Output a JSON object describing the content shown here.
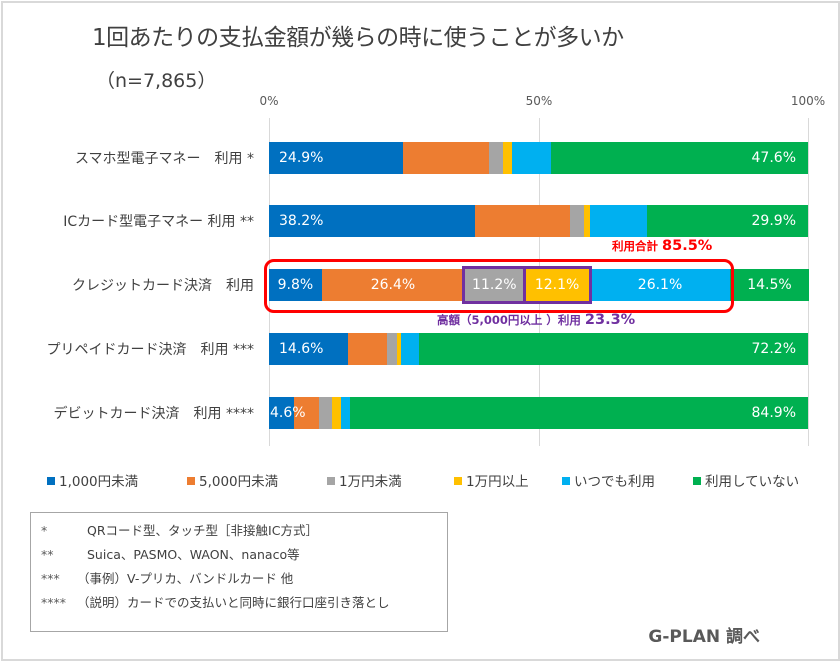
{
  "chart_data": {
    "type": "bar",
    "orientation": "horizontal",
    "stacked": "percent",
    "title": "1回あたりの支払金額が幾らの時に使うことが多いか",
    "subtitle": "（n=7,865）",
    "xlim": [
      0,
      100
    ],
    "x_ticks": [
      "0%",
      "50%",
      "100%"
    ],
    "grid": true,
    "legend_position": "bottom",
    "categories": [
      "スマホ型電子マネー　利用 *",
      "ICカード型電子マネー 利用 **",
      "クレジットカード決済　利用",
      "プリペイドカード決済　利用 ***",
      "デビットカード決済　利用 ****"
    ],
    "series": [
      {
        "name": "1,000円未満",
        "color": "#0070c0",
        "values": [
          24.9,
          38.2,
          9.8,
          14.6,
          4.6
        ],
        "labels": [
          "24.9%",
          "38.2%",
          "9.8%",
          "14.6%",
          "4.6%"
        ]
      },
      {
        "name": "5,000円未満",
        "color": "#ed7d31",
        "values": [
          16.0,
          17.6,
          26.4,
          7.2,
          4.7
        ],
        "labels": [
          "",
          "",
          "26.4%",
          "",
          ""
        ]
      },
      {
        "name": "1万円未満",
        "color": "#a5a5a5",
        "values": [
          2.6,
          2.6,
          11.2,
          1.9,
          2.4
        ],
        "labels": [
          "",
          "",
          "11.2%",
          "",
          ""
        ]
      },
      {
        "name": "1万円以上",
        "color": "#ffc000",
        "values": [
          1.5,
          1.1,
          12.1,
          0.8,
          1.6
        ],
        "labels": [
          "",
          "",
          "12.1%",
          "",
          ""
        ]
      },
      {
        "name": "いつでも利用",
        "color": "#00b0f0",
        "values": [
          7.4,
          10.6,
          26.1,
          3.3,
          1.8
        ],
        "labels": [
          "",
          "",
          "26.1%",
          "",
          ""
        ]
      },
      {
        "name": "利用していない",
        "color": "#00b050",
        "values": [
          47.6,
          29.9,
          14.5,
          72.2,
          84.9
        ],
        "labels": [
          "47.6%",
          "29.9%",
          "14.5%",
          "72.2%",
          "84.9%"
        ]
      }
    ],
    "annotations": {
      "total_use": {
        "label": "利用合計",
        "value": "85.5%",
        "color": "#ff0000"
      },
      "high_value_use": {
        "label": "高額（5,000円以上 ）利用",
        "value": "23.3%",
        "color": "#7030a0"
      }
    }
  },
  "notes": [
    {
      "mark": "*",
      "text": "QRコード型、タッチ型［非接触IC方式］"
    },
    {
      "mark": "**",
      "text": "Suica、PASMO、WAON、nanaco等"
    },
    {
      "mark": "***",
      "text": "（事例）V-プリカ、バンドルカード 他"
    },
    {
      "mark": "****",
      "text": "（説明）カードでの支払いと同時に銀行口座引き落とし"
    }
  ],
  "credit": "G-PLAN 調べ"
}
